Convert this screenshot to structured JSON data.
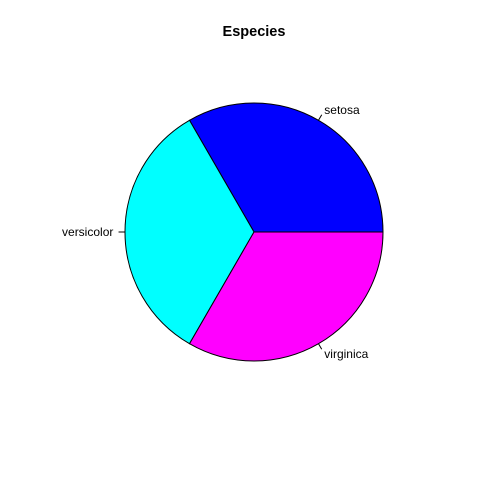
{
  "chart_data": {
    "type": "pie",
    "title": "Especies",
    "start_angle_deg": 0,
    "direction": "counterclockwise",
    "slices": [
      {
        "label": "setosa",
        "value": 50,
        "color": "#0000FF"
      },
      {
        "label": "versicolor",
        "value": 50,
        "color": "#00FFFF"
      },
      {
        "label": "virginica",
        "value": 50,
        "color": "#FF00FF"
      }
    ]
  }
}
